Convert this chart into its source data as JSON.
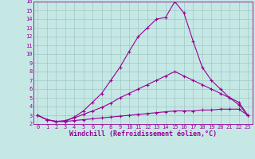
{
  "xlabel": "Windchill (Refroidissement éolien,°C)",
  "background_color": "#c5e8e5",
  "line_color": "#990099",
  "xlim": [
    -0.5,
    23.5
  ],
  "ylim": [
    2,
    16
  ],
  "xticks": [
    0,
    1,
    2,
    3,
    4,
    5,
    6,
    7,
    8,
    9,
    10,
    11,
    12,
    13,
    14,
    15,
    16,
    17,
    18,
    19,
    20,
    21,
    22,
    23
  ],
  "yticks": [
    2,
    3,
    4,
    5,
    6,
    7,
    8,
    9,
    10,
    11,
    12,
    13,
    14,
    15,
    16
  ],
  "line1_x": [
    0,
    1,
    2,
    3,
    4,
    5,
    6,
    7,
    8,
    9,
    10,
    11,
    12,
    13,
    14,
    15,
    16,
    17,
    18,
    19,
    20,
    21,
    22,
    23
  ],
  "line1_y": [
    3.0,
    2.5,
    2.3,
    2.3,
    2.4,
    2.5,
    2.6,
    2.7,
    2.8,
    2.9,
    3.0,
    3.1,
    3.2,
    3.3,
    3.4,
    3.5,
    3.5,
    3.5,
    3.6,
    3.6,
    3.7,
    3.7,
    3.7,
    3.0
  ],
  "line2_x": [
    0,
    1,
    2,
    3,
    4,
    5,
    6,
    7,
    8,
    9,
    10,
    11,
    12,
    13,
    14,
    15,
    16,
    17,
    18,
    19,
    20,
    21,
    22,
    23
  ],
  "line2_y": [
    3.0,
    2.5,
    2.3,
    2.4,
    2.7,
    3.1,
    3.5,
    3.9,
    4.4,
    5.0,
    5.5,
    6.0,
    6.5,
    7.0,
    7.5,
    8.0,
    7.5,
    7.0,
    6.5,
    6.0,
    5.5,
    5.0,
    4.5,
    3.0
  ],
  "line3_x": [
    0,
    1,
    2,
    3,
    4,
    5,
    6,
    7,
    8,
    9,
    10,
    11,
    12,
    13,
    14,
    15,
    16,
    17,
    18,
    19,
    20,
    21,
    22,
    23
  ],
  "line3_y": [
    3.0,
    2.5,
    2.3,
    2.3,
    2.8,
    3.5,
    4.5,
    5.5,
    7.0,
    8.5,
    10.3,
    12.0,
    13.0,
    14.0,
    14.2,
    16.0,
    14.7,
    11.5,
    8.5,
    7.0,
    6.0,
    5.0,
    4.2,
    3.0
  ],
  "marker": "+",
  "markersize": 3.5,
  "linewidth": 0.8,
  "tick_fontsize": 5,
  "xlabel_fontsize": 6,
  "grid_color": "#a0c8c5",
  "grid_linewidth": 0.5
}
